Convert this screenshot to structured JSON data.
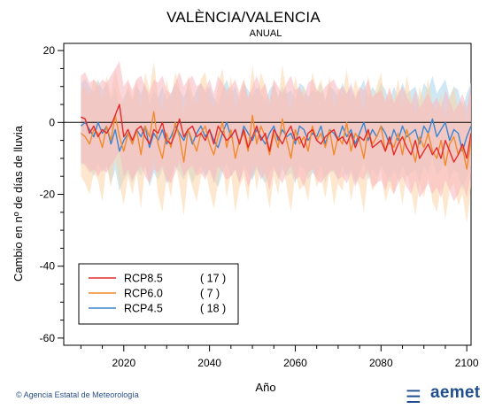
{
  "chart_data": {
    "type": "line",
    "title": "VALÈNCIA/VALENCIA",
    "subtitle": "ANUAL",
    "xlabel": "Año",
    "ylabel": "Cambio en nº de días de lluvia",
    "xlim": [
      2006,
      2101
    ],
    "ylim": [
      -62,
      22
    ],
    "xticks": [
      2020,
      2040,
      2060,
      2080,
      2100
    ],
    "yticks": [
      20,
      0,
      -20,
      -40,
      -60
    ],
    "reference_line": 0,
    "legend_position": "bottom-left",
    "x_start": 2010,
    "series": [
      {
        "name": "RCP8.5",
        "count": "( 17 )",
        "color": "#e32b2b",
        "band_color": "#f7b6bd",
        "values": [
          1.5,
          1,
          -3,
          -1,
          -4,
          -2,
          -3,
          -1,
          2,
          5,
          -4,
          -2,
          -5,
          -2,
          -1,
          -4,
          -6,
          -2,
          -3,
          0,
          -5,
          -6,
          -3,
          1,
          -4,
          -2,
          -1,
          -4,
          -3,
          -5,
          -2,
          -6,
          -1,
          -3,
          -5,
          -4,
          -2,
          -6,
          -2,
          -7,
          -4,
          -1,
          -5,
          -3,
          -8,
          -2,
          -4,
          -6,
          -3,
          -1,
          -5,
          -4,
          -7,
          -3,
          -2,
          -5,
          -6,
          -4,
          -3,
          -2,
          -5,
          -4,
          -6,
          -3,
          -7,
          -4,
          -5,
          -2,
          -7,
          -6,
          -5,
          -8,
          -4,
          -9,
          -6,
          -4,
          -7,
          -9,
          -5,
          -10,
          -8,
          -6,
          -9,
          -7,
          -10,
          -5,
          -8,
          -11,
          -9,
          -6,
          -10,
          -3
        ],
        "low": [
          -11,
          -12,
          -14,
          -13,
          -15,
          -13,
          -14,
          -12,
          -10,
          -8,
          -15,
          -13,
          -16,
          -14,
          -12,
          -15,
          -17,
          -13,
          -14,
          -12,
          -16,
          -17,
          -14,
          -11,
          -15,
          -13,
          -12,
          -15,
          -14,
          -16,
          -13,
          -17,
          -12,
          -14,
          -16,
          -15,
          -13,
          -17,
          -13,
          -18,
          -15,
          -12,
          -16,
          -14,
          -19,
          -13,
          -15,
          -17,
          -14,
          -12,
          -16,
          -15,
          -18,
          -14,
          -13,
          -16,
          -17,
          -15,
          -14,
          -13,
          -16,
          -15,
          -17,
          -14,
          -18,
          -15,
          -16,
          -13,
          -18,
          -17,
          -16,
          -19,
          -15,
          -20,
          -17,
          -15,
          -18,
          -20,
          -16,
          -21,
          -19,
          -17,
          -20,
          -18,
          -21,
          -16,
          -19,
          -22,
          -20,
          -17,
          -21,
          -14
        ],
        "high": [
          13,
          14,
          11,
          12,
          10,
          12,
          11,
          13,
          15,
          17,
          10,
          12,
          9,
          12,
          13,
          10,
          8,
          12,
          11,
          13,
          9,
          8,
          11,
          14,
          10,
          12,
          13,
          10,
          11,
          9,
          12,
          8,
          13,
          11,
          9,
          10,
          12,
          8,
          12,
          7,
          10,
          13,
          9,
          11,
          6,
          12,
          10,
          8,
          11,
          13,
          9,
          10,
          7,
          11,
          12,
          9,
          8,
          10,
          11,
          12,
          9,
          10,
          8,
          11,
          7,
          10,
          9,
          12,
          7,
          8,
          9,
          6,
          10,
          5,
          8,
          10,
          7,
          5,
          9,
          4,
          6,
          8,
          5,
          7,
          4,
          9,
          6,
          3,
          5,
          8,
          4,
          11
        ]
      },
      {
        "name": "RCP6.0",
        "count": "(   7 )",
        "color": "#f28a2e",
        "band_color": "#fbd3a6",
        "values": [
          -3,
          -4,
          -6,
          -2,
          -3,
          -7,
          -1,
          -5,
          2,
          -4,
          -8,
          -3,
          -6,
          -2,
          -9,
          -1,
          -4,
          3,
          -6,
          -10,
          -3,
          -7,
          0,
          -4,
          -11,
          -2,
          -5,
          -8,
          -3,
          -1,
          -6,
          -9,
          -4,
          0,
          -7,
          -2,
          -10,
          -5,
          -3,
          -8,
          2,
          -6,
          -1,
          -4,
          -9,
          -3,
          -7,
          1,
          -5,
          -10,
          -2,
          -6,
          -4,
          -8,
          -1,
          -5,
          -3,
          -7,
          -2,
          -9,
          -4,
          -6,
          0,
          -8,
          -3,
          -5,
          -10,
          -2,
          -6,
          -4,
          -1,
          -8,
          -5,
          -7,
          -3,
          -9,
          -2,
          -6,
          -11,
          -4,
          -7,
          -3,
          -8,
          -10,
          -5,
          -12,
          -6,
          -4,
          -9,
          -7,
          -13,
          -5
        ],
        "low": [
          -15,
          -17,
          -20,
          -14,
          -16,
          -22,
          -12,
          -18,
          -10,
          -17,
          -23,
          -15,
          -20,
          -14,
          -24,
          -12,
          -17,
          -9,
          -20,
          -25,
          -15,
          -21,
          -11,
          -17,
          -26,
          -14,
          -18,
          -22,
          -15,
          -12,
          -19,
          -24,
          -17,
          -11,
          -21,
          -14,
          -25,
          -18,
          -15,
          -22,
          -10,
          -19,
          -12,
          -17,
          -24,
          -15,
          -20,
          -11,
          -18,
          -25,
          -14,
          -19,
          -17,
          -22,
          -12,
          -18,
          -15,
          -21,
          -14,
          -23,
          -17,
          -19,
          -12,
          -22,
          -15,
          -18,
          -25,
          -14,
          -19,
          -17,
          -13,
          -22,
          -18,
          -20,
          -15,
          -23,
          -14,
          -19,
          -26,
          -17,
          -21,
          -15,
          -22,
          -25,
          -18,
          -27,
          -19,
          -17,
          -23,
          -20,
          -28,
          -18
        ],
        "high": [
          9,
          10,
          7,
          12,
          11,
          6,
          13,
          8,
          15,
          9,
          5,
          11,
          7,
          12,
          4,
          14,
          9,
          17,
          7,
          3,
          12,
          6,
          14,
          10,
          2,
          13,
          8,
          5,
          12,
          14,
          7,
          4,
          10,
          15,
          6,
          13,
          3,
          9,
          12,
          5,
          16,
          7,
          14,
          10,
          4,
          12,
          6,
          16,
          8,
          3,
          13,
          7,
          10,
          5,
          14,
          9,
          12,
          6,
          13,
          4,
          10,
          7,
          15,
          5,
          12,
          8,
          3,
          13,
          7,
          10,
          14,
          5,
          9,
          6,
          12,
          4,
          13,
          7,
          2,
          10,
          6,
          12,
          5,
          3,
          8,
          1,
          7,
          10,
          4,
          6,
          0,
          8
        ]
      },
      {
        "name": "RCP4.5",
        "count": "( 18 )",
        "color": "#3d86cf",
        "band_color": "#a9d6ea",
        "values": [
          -1,
          0,
          -2,
          -4,
          0,
          -3,
          -1,
          -6,
          -2,
          -8,
          -5,
          -3,
          -6,
          -2,
          -4,
          -1,
          -7,
          -3,
          -5,
          -2,
          -6,
          -4,
          -1,
          -3,
          -5,
          -2,
          -6,
          -3,
          -1,
          -4,
          -2,
          -5,
          -7,
          -3,
          0,
          -4,
          -2,
          -6,
          -1,
          -3,
          -5,
          -2,
          -4,
          -6,
          -3,
          -1,
          -5,
          -2,
          -4,
          -3,
          -6,
          -1,
          -2,
          -5,
          -3,
          -4,
          -1,
          -6,
          -2,
          -3,
          -5,
          -1,
          -4,
          -2,
          -6,
          -3,
          0,
          -5,
          -2,
          -4,
          -1,
          -3,
          -6,
          -2,
          -5,
          -1,
          -4,
          -3,
          -2,
          -6,
          -1,
          -3,
          1,
          -4,
          -2,
          0,
          -5,
          -2,
          -3,
          -8,
          -4,
          -1
        ],
        "low": [
          -12,
          -11,
          -13,
          -15,
          -11,
          -14,
          -12,
          -17,
          -13,
          -19,
          -16,
          -14,
          -17,
          -13,
          -15,
          -12,
          -18,
          -14,
          -16,
          -13,
          -17,
          -15,
          -12,
          -14,
          -16,
          -13,
          -17,
          -14,
          -12,
          -15,
          -13,
          -16,
          -18,
          -14,
          -11,
          -15,
          -13,
          -17,
          -12,
          -14,
          -16,
          -13,
          -15,
          -17,
          -14,
          -12,
          -16,
          -13,
          -15,
          -14,
          -17,
          -12,
          -13,
          -16,
          -14,
          -15,
          -12,
          -17,
          -13,
          -14,
          -16,
          -12,
          -15,
          -13,
          -17,
          -14,
          -11,
          -16,
          -13,
          -15,
          -12,
          -14,
          -17,
          -13,
          -16,
          -12,
          -15,
          -14,
          -13,
          -17,
          -12,
          -14,
          -10,
          -15,
          -13,
          -11,
          -16,
          -13,
          -14,
          -19,
          -15,
          -12
        ],
        "high": [
          11,
          12,
          10,
          8,
          12,
          9,
          11,
          6,
          10,
          4,
          7,
          9,
          6,
          10,
          8,
          11,
          5,
          9,
          7,
          10,
          6,
          8,
          11,
          9,
          7,
          10,
          6,
          9,
          11,
          8,
          10,
          7,
          5,
          9,
          12,
          8,
          10,
          6,
          11,
          9,
          7,
          10,
          8,
          6,
          9,
          11,
          7,
          10,
          8,
          9,
          6,
          11,
          10,
          7,
          9,
          8,
          11,
          6,
          10,
          9,
          7,
          11,
          8,
          10,
          6,
          9,
          12,
          7,
          10,
          8,
          11,
          9,
          6,
          10,
          7,
          11,
          8,
          9,
          10,
          6,
          11,
          9,
          13,
          8,
          10,
          12,
          7,
          10,
          9,
          4,
          8,
          11
        ]
      }
    ]
  },
  "footer": {
    "credit": "© Agencia Estatal de Meteorología",
    "logo_text": "aemet"
  }
}
